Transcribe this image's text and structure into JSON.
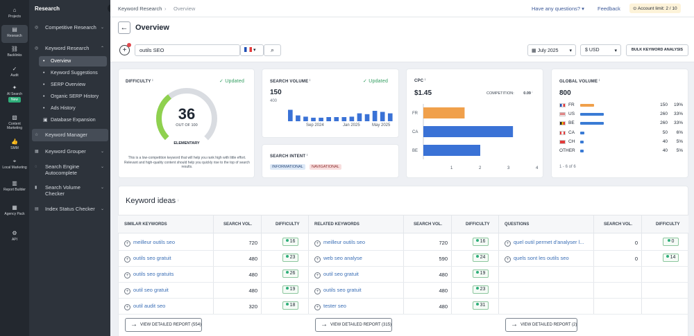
{
  "rail": [
    {
      "icon": "home-icon",
      "label": "Projects"
    },
    {
      "icon": "research-icon",
      "label": "Research"
    },
    {
      "icon": "link-icon",
      "label": "Backlinks"
    },
    {
      "icon": "audit-icon",
      "label": "Audit"
    },
    {
      "icon": "sparkle-icon",
      "label": "AI Search",
      "badge": "New"
    },
    {
      "icon": "document-icon",
      "label": "Content Marketing"
    },
    {
      "icon": "thumb-icon",
      "label": "SMM"
    },
    {
      "icon": "pin-icon",
      "label": "Local Marketing"
    },
    {
      "icon": "report-icon",
      "label": "Report Builder"
    },
    {
      "icon": "agency-icon",
      "label": "Agency Pack"
    },
    {
      "icon": "api-icon",
      "label": "API"
    }
  ],
  "sidebar": {
    "title": "Research",
    "items": [
      {
        "label": "Competitive Research"
      },
      {
        "label": "Keyword Research"
      },
      {
        "label": "Overview"
      },
      {
        "label": "Keyword Suggestions"
      },
      {
        "label": "SERP Overview"
      },
      {
        "label": "Organic SERP History"
      },
      {
        "label": "Ads History"
      },
      {
        "label": "Database Expansion"
      },
      {
        "label": "Keyword Manager"
      },
      {
        "label": "Keyword Grouper"
      },
      {
        "label": "Search Engine Autocomplete"
      },
      {
        "label": "Search Volume Checker"
      },
      {
        "label": "Index Status Checker"
      }
    ]
  },
  "topbar": {
    "breadcrumb": [
      "Keyword Research",
      "Overview"
    ],
    "questions": "Have any questions?",
    "feedback": "Feedback",
    "account_label": "Account limit:",
    "account_value": "2 / 10"
  },
  "page": {
    "title": "Overview"
  },
  "search": {
    "value": "outils SEO",
    "date": "July 2025",
    "currency": "$ USD",
    "bulk": "BULK KEYWORD ANALYSIS"
  },
  "difficulty": {
    "label": "DIFFICULTY",
    "updated": "Updated",
    "value": "36",
    "out_of": "OUT OF 100",
    "level": "ELEMENTARY",
    "gauge_fraction": 0.36,
    "note": "This is a low-competition keyword that will help you rank high with little effort. Relevant and high-quality content should help you quickly rise to the top of search results."
  },
  "search_volume": {
    "label": "SEARCH VOLUME",
    "updated": "Updated",
    "value": "150",
    "axis_max": "400",
    "xticks": [
      "Sep 2024",
      "Jan 2025",
      "May 2025"
    ],
    "bars": [
      0.55,
      0.28,
      0.22,
      0.17,
      0.17,
      0.2,
      0.2,
      0.2,
      0.22,
      0.38,
      0.34,
      0.5,
      0.45,
      0.38
    ]
  },
  "search_intent": {
    "label": "SEARCH INTENT",
    "tags": [
      "INFORMATIONAL",
      "NAVIGATIONAL"
    ]
  },
  "cpc": {
    "label": "CPC",
    "value": "$1.45",
    "competition_label": "COMPETITION:",
    "competition_value": "0.09",
    "chart_data": {
      "type": "bar",
      "categories": [
        "FR",
        "CA",
        "BE"
      ],
      "values": [
        1.45,
        3.15,
        2.0
      ],
      "xticks": [
        "1",
        "2",
        "3",
        "4"
      ],
      "xlim": [
        0,
        4
      ]
    }
  },
  "global_volume": {
    "label": "GLOBAL VOLUME",
    "value": "800",
    "rows": [
      {
        "flag": "flag-fr-icon",
        "code": "FR",
        "vol": "150",
        "pct": "19%",
        "share": 0.58,
        "color": "#f0a04b"
      },
      {
        "flag": "flag-us-icon",
        "code": "US",
        "vol": "260",
        "pct": "33%",
        "share": 1.0,
        "color": "#3a7bd5"
      },
      {
        "flag": "flag-be-icon",
        "code": "BE",
        "vol": "260",
        "pct": "33%",
        "share": 1.0,
        "color": "#3a7bd5"
      },
      {
        "flag": "flag-ca-icon",
        "code": "CA",
        "vol": "50",
        "pct": "6%",
        "share": 0.19,
        "color": "#3a7bd5"
      },
      {
        "flag": "flag-ch-icon",
        "code": "CH",
        "vol": "40",
        "pct": "5%",
        "share": 0.15,
        "color": "#3a7bd5"
      },
      {
        "flag": "",
        "code": "OTHER",
        "vol": "40",
        "pct": "5%",
        "share": 0.15,
        "color": "#3a7bd5"
      }
    ],
    "footer": "1 - 6 of 6"
  },
  "ideas": {
    "title": "Keyword ideas",
    "columns": [
      {
        "header": "SIMILAR KEYWORDS",
        "rows": [
          {
            "kw": "meilleur outils seo",
            "vol": "720",
            "diff": "16"
          },
          {
            "kw": "outils seo gratuit",
            "vol": "480",
            "diff": "23"
          },
          {
            "kw": "outils seo gratuits",
            "vol": "480",
            "diff": "26"
          },
          {
            "kw": "outil seo gratuit",
            "vol": "480",
            "diff": "19"
          },
          {
            "kw": "outil audit seo",
            "vol": "320",
            "diff": "18"
          }
        ],
        "report": "VIEW DETAILED REPORT (554)"
      },
      {
        "header": "RELATED KEYWORDS",
        "rows": [
          {
            "kw": "meilleur outils seo",
            "vol": "720",
            "diff": "16"
          },
          {
            "kw": "web seo analyse",
            "vol": "590",
            "diff": "24"
          },
          {
            "kw": "outil seo gratuit",
            "vol": "480",
            "diff": "19"
          },
          {
            "kw": "outils seo gratuit",
            "vol": "480",
            "diff": "23"
          },
          {
            "kw": "tester seo",
            "vol": "480",
            "diff": "31"
          }
        ],
        "report": "VIEW DETAILED REPORT (315)"
      },
      {
        "header": "QUESTIONS",
        "rows": [
          {
            "kw": "quel outil permet d'analyser l...",
            "vol": "0",
            "diff": "0"
          },
          {
            "kw": "quels sont les outils seo",
            "vol": "0",
            "diff": "14"
          }
        ],
        "report": "VIEW DETAILED REPORT (2)"
      }
    ],
    "vol_header": "SEARCH VOL.",
    "diff_header": "DIFFICULTY"
  }
}
